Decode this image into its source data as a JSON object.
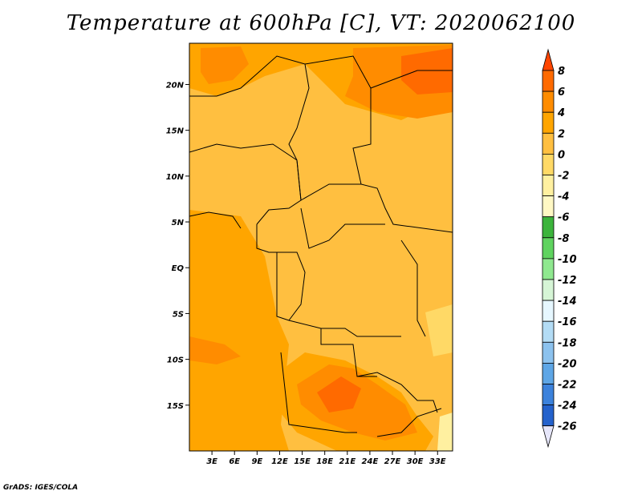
{
  "title": "Temperature at 600hPa [C], VT: 2020062100",
  "credit": "GrADS: IGES/COLA",
  "map": {
    "lat_labels": [
      "20N",
      "15N",
      "10N",
      "5N",
      "EQ",
      "5S",
      "10S",
      "15S"
    ],
    "lat_values": [
      20,
      15,
      10,
      5,
      0,
      -5,
      -10,
      -15
    ],
    "lon_labels": [
      "3E",
      "6E",
      "9E",
      "12E",
      "15E",
      "18E",
      "21E",
      "24E",
      "27E",
      "30E",
      "33E"
    ],
    "lon_values": [
      3,
      6,
      9,
      12,
      15,
      18,
      21,
      24,
      27,
      30,
      33
    ],
    "lat_range": [
      -20,
      24.5
    ],
    "lon_range": [
      0,
      35
    ]
  },
  "colorbar": {
    "labels": [
      "8",
      "6",
      "4",
      "2",
      "0",
      "-2",
      "-4",
      "-6",
      "-8",
      "-10",
      "-12",
      "-14",
      "-16",
      "-18",
      "-20",
      "-22",
      "-24",
      "-26"
    ],
    "colors": [
      "#ff4500",
      "#ff6a00",
      "#ff8c00",
      "#ffa500",
      "#ffbf40",
      "#ffd966",
      "#fff0a0",
      "#fff8c4",
      "#3cb43c",
      "#5fd35f",
      "#8fe88f",
      "#d6f5d6",
      "#e6f7ff",
      "#b3dcf5",
      "#8cc2ee",
      "#5ea6e6",
      "#3c82dc",
      "#2462cc",
      "#1443b0",
      "#0a2a80",
      "#0a1460",
      "#e6e6fa"
    ]
  },
  "legend_palette": {
    "hot": "#ff4500",
    "warm": "#ff8c00",
    "mid": "#ffa500",
    "mild": "#ffbf40"
  }
}
